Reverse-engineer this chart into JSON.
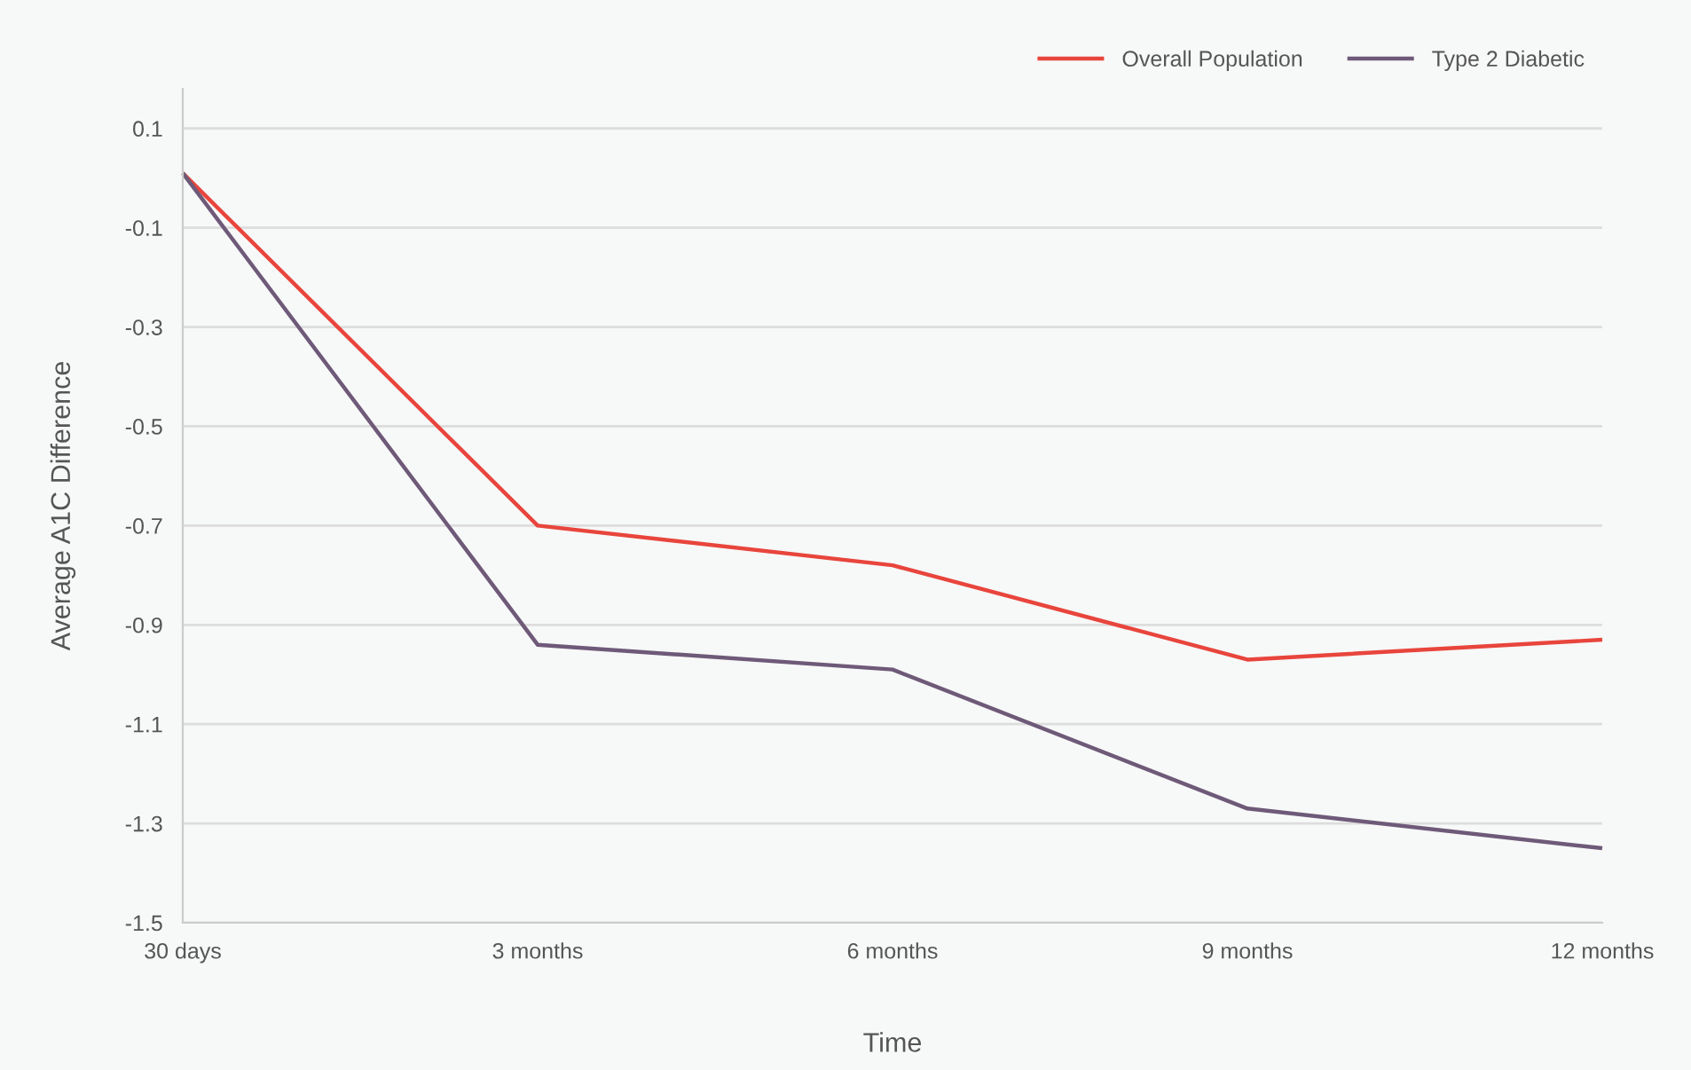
{
  "chart_data": {
    "type": "line",
    "xlabel": "Time",
    "ylabel": "Average A1C Difference",
    "categories": [
      "30 days",
      "3 months",
      "6 months",
      "9 months",
      "12 months"
    ],
    "series": [
      {
        "name": "Overall Population",
        "color": "#e8453c",
        "values": [
          0.01,
          -0.7,
          -0.78,
          -0.97,
          -0.93
        ]
      },
      {
        "name": "Type 2 Diabetic",
        "color": "#6e5a78",
        "values": [
          0.01,
          -0.94,
          -0.99,
          -1.27,
          -1.35
        ]
      }
    ],
    "ylim": [
      -1.5,
      0.18
    ],
    "yticks": [
      0.1,
      -0.1,
      -0.3,
      -0.5,
      -0.7,
      -0.9,
      -1.1,
      -1.3,
      -1.5
    ],
    "grid": "y",
    "legend": "top right",
    "marker": "none",
    "line_style": "solid"
  }
}
